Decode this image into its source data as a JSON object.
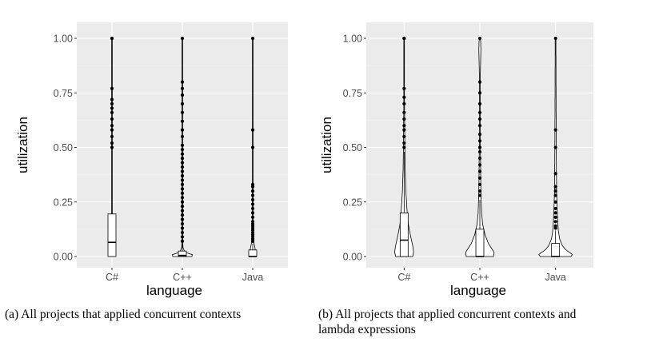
{
  "colors": {
    "panel_bg": "#ebebeb",
    "grid_major": "#ffffff",
    "grid_minor": "#f5f5f5",
    "mark": "#000000",
    "tick_text": "#4d4d4d"
  },
  "chart_data": [
    {
      "type": "violin+boxplot",
      "caption": "(a) All projects that applied concurrent contexts",
      "xlabel": "language",
      "ylabel": "utilization",
      "ylim": [
        0,
        1
      ],
      "yticks": [
        "0.00",
        "0.25",
        "0.50",
        "0.75",
        "1.00"
      ],
      "grid": true,
      "categories": [
        "C#",
        "C++",
        "Java"
      ],
      "series": [
        {
          "category": "C#",
          "box": {
            "q1": 0.0,
            "median": 0.065,
            "q3": 0.195
          },
          "whisker_top": 0.48,
          "outliers": [
            0.5,
            0.52,
            0.55,
            0.58,
            0.6,
            0.63,
            0.66,
            0.68,
            0.7,
            0.72,
            0.77,
            1.0,
            1.0
          ],
          "violin": [
            [
              0,
              0.02
            ],
            [
              0.03,
              0.02
            ],
            [
              0.06,
              0.015
            ],
            [
              0.1,
              0.01
            ],
            [
              0.2,
              0.006
            ],
            [
              0.4,
              0.003
            ],
            [
              0.6,
              0.002
            ],
            [
              0.8,
              0.0015
            ],
            [
              1.0,
              0.001
            ]
          ]
        },
        {
          "category": "C++",
          "box": {
            "q1": 0.0,
            "median": 0.005,
            "q3": 0.025
          },
          "whisker_top": 0.06,
          "outliers": [
            0.07,
            0.09,
            0.11,
            0.13,
            0.15,
            0.17,
            0.19,
            0.21,
            0.23,
            0.25,
            0.27,
            0.29,
            0.31,
            0.33,
            0.35,
            0.37,
            0.39,
            0.41,
            0.43,
            0.45,
            0.47,
            0.49,
            0.51,
            0.55,
            0.58,
            0.62,
            0.66,
            0.7,
            0.74,
            0.77,
            0.8,
            1.0
          ],
          "violin": [
            [
              0,
              0.3
            ],
            [
              0.005,
              0.45
            ],
            [
              0.01,
              0.25
            ],
            [
              0.02,
              0.08
            ],
            [
              0.04,
              0.02
            ],
            [
              0.1,
              0.006
            ],
            [
              0.3,
              0.003
            ],
            [
              0.6,
              0.002
            ],
            [
              1.0,
              0.001
            ]
          ]
        },
        {
          "category": "Java",
          "box": {
            "q1": 0.0,
            "median": 0.0,
            "q3": 0.03
          },
          "whisker_top": 0.06,
          "outliers": [
            0.07,
            0.08,
            0.09,
            0.1,
            0.11,
            0.12,
            0.13,
            0.14,
            0.15,
            0.16,
            0.18,
            0.2,
            0.22,
            0.24,
            0.26,
            0.28,
            0.3,
            0.32,
            0.33,
            0.5,
            0.58,
            1.0
          ],
          "violin": [
            [
              0,
              0.02
            ],
            [
              0.01,
              0.1
            ],
            [
              0.02,
              0.09
            ],
            [
              0.04,
              0.07
            ],
            [
              0.06,
              0.04
            ],
            [
              0.1,
              0.015
            ],
            [
              0.3,
              0.004
            ],
            [
              0.6,
              0.002
            ],
            [
              1.0,
              0.001
            ]
          ]
        }
      ]
    },
    {
      "type": "violin+boxplot",
      "caption": "(b) All projects that applied concurrent contexts and lambda expressions",
      "xlabel": "language",
      "ylabel": "utilization",
      "ylim": [
        0,
        1
      ],
      "yticks": [
        "0.00",
        "0.25",
        "0.50",
        "0.75",
        "1.00"
      ],
      "grid": true,
      "categories": [
        "C#",
        "C++",
        "Java"
      ],
      "series": [
        {
          "category": "C#",
          "box": {
            "q1": 0.0,
            "median": 0.075,
            "q3": 0.2
          },
          "whisker_top": 0.48,
          "outliers": [
            0.5,
            0.52,
            0.55,
            0.58,
            0.6,
            0.63,
            0.66,
            0.7,
            0.73,
            0.77,
            1.0,
            1.0
          ],
          "violin": [
            [
              0,
              0.25
            ],
            [
              0.02,
              0.28
            ],
            [
              0.05,
              0.25
            ],
            [
              0.1,
              0.18
            ],
            [
              0.15,
              0.12
            ],
            [
              0.2,
              0.09
            ],
            [
              0.3,
              0.05
            ],
            [
              0.4,
              0.03
            ],
            [
              0.5,
              0.02
            ],
            [
              0.7,
              0.01
            ],
            [
              0.9,
              0.006
            ],
            [
              1.0,
              0.004
            ]
          ]
        },
        {
          "category": "C++",
          "box": {
            "q1": 0.0,
            "median": 0.0,
            "q3": 0.125
          },
          "whisker_top": 0.26,
          "outliers": [
            0.28,
            0.3,
            0.33,
            0.36,
            0.39,
            0.42,
            0.45,
            0.48,
            0.5,
            0.53,
            0.56,
            0.6,
            0.63,
            0.66,
            0.7,
            0.75,
            0.8,
            1.0
          ],
          "violin": [
            [
              0,
              0.4
            ],
            [
              0.02,
              0.42
            ],
            [
              0.04,
              0.33
            ],
            [
              0.06,
              0.25
            ],
            [
              0.1,
              0.15
            ],
            [
              0.15,
              0.08
            ],
            [
              0.2,
              0.05
            ],
            [
              0.3,
              0.03
            ],
            [
              0.5,
              0.015
            ],
            [
              0.8,
              0.008
            ],
            [
              0.95,
              0.03
            ],
            [
              1.0,
              0.02
            ]
          ]
        },
        {
          "category": "Java",
          "box": {
            "q1": 0.0,
            "median": 0.0,
            "q3": 0.06
          },
          "whisker_top": 0.12,
          "outliers": [
            0.13,
            0.14,
            0.16,
            0.18,
            0.2,
            0.22,
            0.25,
            0.28,
            0.3,
            0.32,
            0.38,
            0.5,
            0.58,
            1.0
          ],
          "violin": [
            [
              0,
              0.45
            ],
            [
              0.01,
              0.5
            ],
            [
              0.03,
              0.3
            ],
            [
              0.05,
              0.2
            ],
            [
              0.08,
              0.12
            ],
            [
              0.12,
              0.08
            ],
            [
              0.2,
              0.05
            ],
            [
              0.3,
              0.03
            ],
            [
              0.5,
              0.02
            ],
            [
              0.7,
              0.015
            ],
            [
              1.0,
              0.01
            ]
          ]
        }
      ]
    }
  ]
}
